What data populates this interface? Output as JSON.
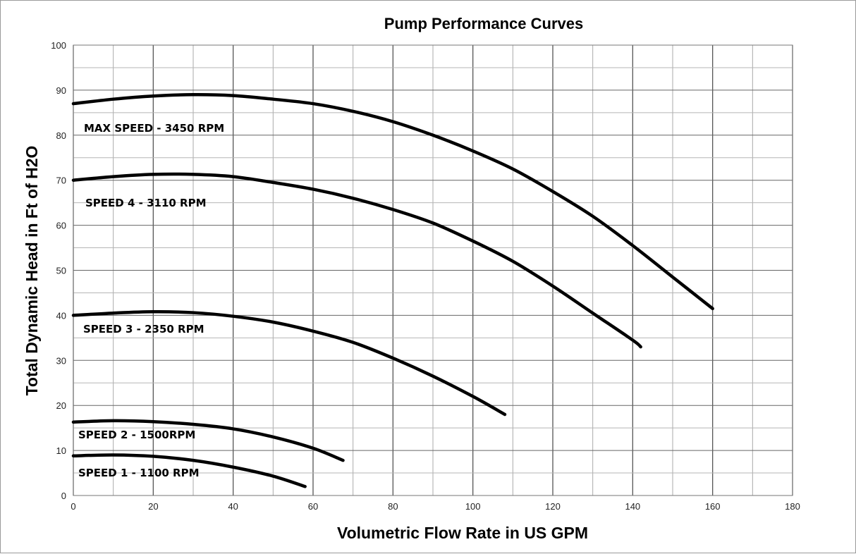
{
  "chart_data": {
    "type": "line",
    "title": "Pump Performance Curves",
    "xlabel": "Volumetric Flow Rate in US GPM",
    "ylabel": "Total Dynamic Head in Ft of H2O",
    "xlim": [
      0,
      180
    ],
    "ylim": [
      0,
      100
    ],
    "xticks": [
      0,
      20,
      40,
      60,
      80,
      100,
      120,
      140,
      160,
      180
    ],
    "yticks": [
      0,
      10,
      20,
      30,
      40,
      50,
      60,
      70,
      80,
      90,
      100
    ],
    "grid": true,
    "legend": "inline labels",
    "line_color": "#000000",
    "series": [
      {
        "name": "MAX SPEED - 3450 RPM",
        "x": [
          0,
          10,
          20,
          30,
          40,
          50,
          60,
          70,
          80,
          90,
          100,
          110,
          120,
          130,
          140,
          150,
          155,
          160
        ],
        "y": [
          87,
          88,
          88.7,
          89,
          88.8,
          88,
          87,
          85.3,
          83,
          80,
          76.5,
          72.5,
          67.5,
          62,
          55.5,
          48.5,
          45,
          41.5
        ]
      },
      {
        "name": "SPEED 4 - 3110 RPM",
        "x": [
          0,
          10,
          20,
          30,
          40,
          50,
          60,
          70,
          80,
          90,
          100,
          110,
          120,
          130,
          140,
          142
        ],
        "y": [
          70,
          70.8,
          71.3,
          71.3,
          70.8,
          69.5,
          68,
          66,
          63.5,
          60.5,
          56.5,
          52,
          46.5,
          40.5,
          34.5,
          33
        ]
      },
      {
        "name": "SPEED 3 - 2350 RPM",
        "x": [
          0,
          10,
          20,
          30,
          40,
          50,
          60,
          70,
          80,
          90,
          100,
          108
        ],
        "y": [
          40,
          40.5,
          40.8,
          40.6,
          39.8,
          38.5,
          36.5,
          34,
          30.5,
          26.5,
          22,
          18
        ]
      },
      {
        "name": "SPEED 2 - 1500RPM",
        "x": [
          0,
          10,
          20,
          30,
          40,
          50,
          60,
          67.5
        ],
        "y": [
          16.3,
          16.6,
          16.4,
          15.8,
          14.8,
          13,
          10.5,
          7.8
        ]
      },
      {
        "name": "SPEED 1 - 1100 RPM",
        "x": [
          0,
          10,
          20,
          30,
          40,
          50,
          58
        ],
        "y": [
          8.8,
          9,
          8.7,
          7.8,
          6.3,
          4.3,
          2
        ]
      }
    ]
  }
}
